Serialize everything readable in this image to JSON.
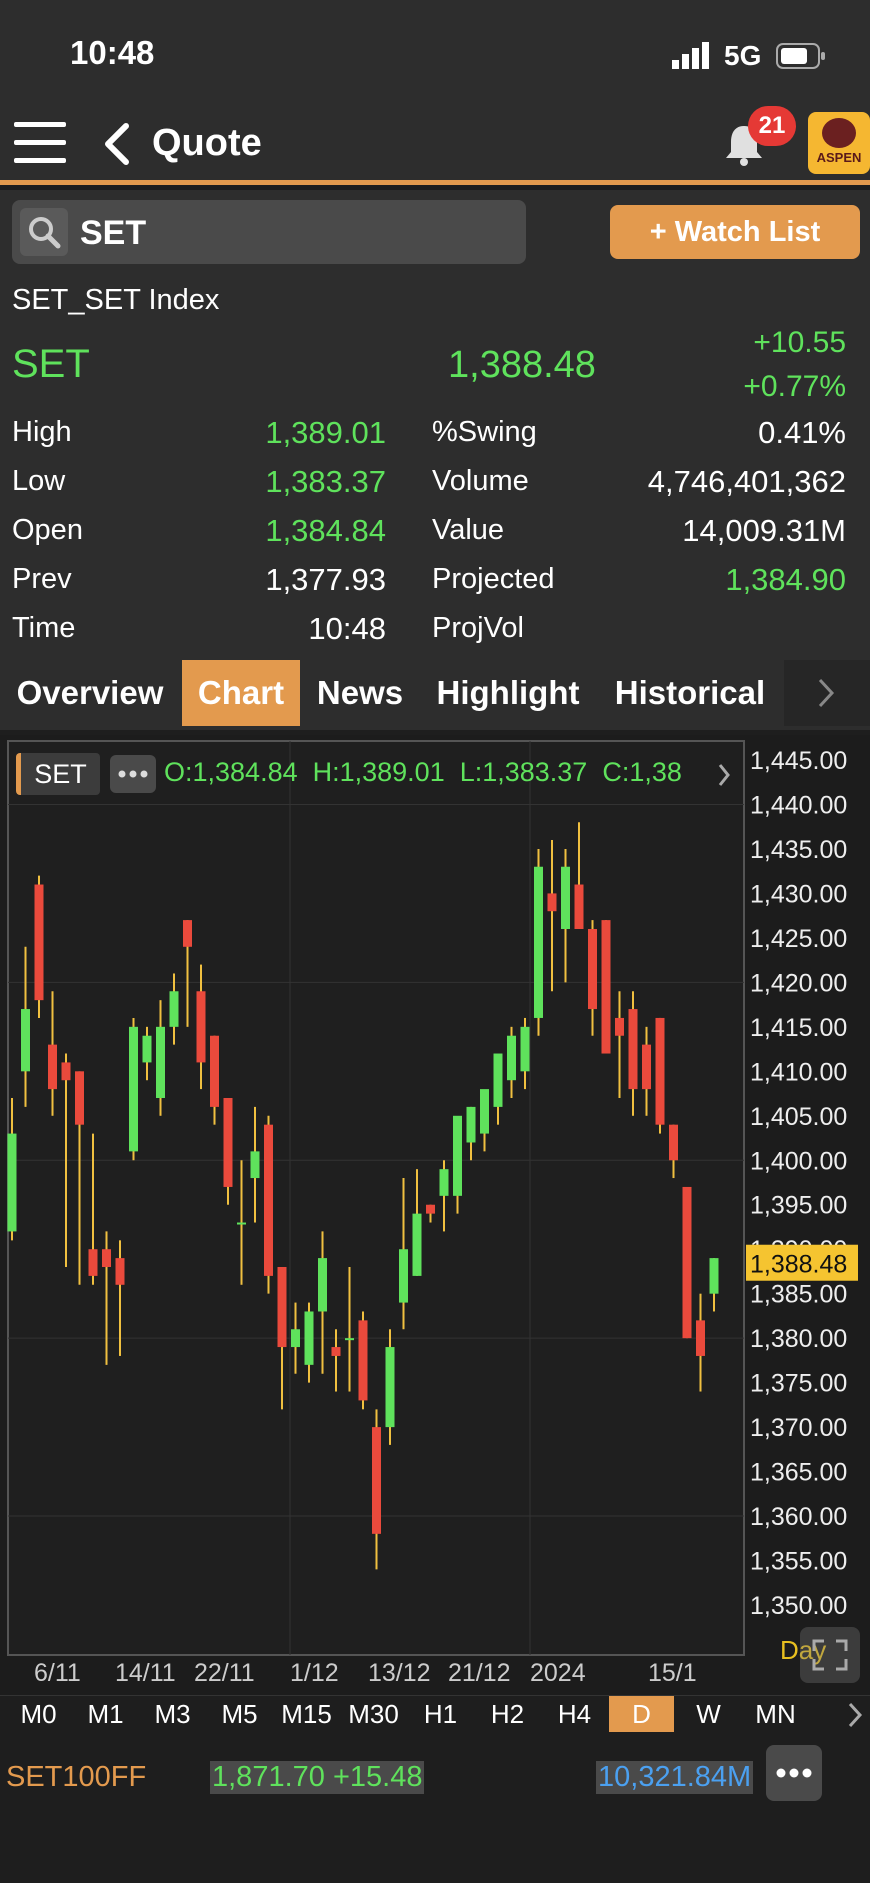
{
  "status": {
    "time": "10:48",
    "network": "5G"
  },
  "nav": {
    "title": "Quote",
    "badge": "21",
    "logo": "ASPEN"
  },
  "search": {
    "value": "SET",
    "watch_label": "+ Watch List"
  },
  "quote": {
    "full_name": "SET_SET Index",
    "symbol": "SET",
    "last": "1,388.48",
    "change": "+10.55",
    "change_pct": "+0.77%",
    "left_rows": [
      {
        "label": "High",
        "value": "1,389.01",
        "color": "#5fe25c"
      },
      {
        "label": "Low",
        "value": "1,383.37",
        "color": "#5fe25c"
      },
      {
        "label": "Open",
        "value": "1,384.84",
        "color": "#5fe25c"
      },
      {
        "label": "Prev",
        "value": "1,377.93",
        "color": "#ffffff"
      },
      {
        "label": "Time",
        "value": "10:48",
        "color": "#ffffff"
      }
    ],
    "right_rows": [
      {
        "label": "%Swing",
        "value": "0.41%",
        "color": "#ffffff"
      },
      {
        "label": "Volume",
        "value": "4,746,401,362",
        "color": "#ffffff"
      },
      {
        "label": "Value",
        "value": "14,009.31M",
        "color": "#ffffff"
      },
      {
        "label": "Projected",
        "value": "1,384.90",
        "color": "#5fe25c"
      },
      {
        "label": "ProjVol",
        "value": "",
        "color": "#ffffff"
      }
    ]
  },
  "tabs": [
    "Overview",
    "Chart",
    "News",
    "Highlight",
    "Historical"
  ],
  "active_tab": "Chart",
  "chart_header": {
    "symbol": "SET",
    "ohlc": "O:1,384.84  H:1,389.01  L:1,383.37  C:1,38"
  },
  "chart_data": {
    "type": "candlestick",
    "ylim": [
      1345,
      1447
    ],
    "y_ticks": [
      "1,445.00",
      "1,440.00",
      "1,435.00",
      "1,430.00",
      "1,425.00",
      "1,420.00",
      "1,415.00",
      "1,410.00",
      "1,405.00",
      "1,400.00",
      "1,395.00",
      "1,390.00",
      "1,385.00",
      "1,380.00",
      "1,375.00",
      "1,370.00",
      "1,365.00",
      "1,360.00",
      "1,355.00",
      "1,350.00"
    ],
    "x_ticks": [
      "6/11",
      "14/11",
      "22/11",
      "1/12",
      "13/12",
      "21/12",
      "2024",
      "15/1"
    ],
    "last_price_label": "1,388.48",
    "last_price": 1388.48,
    "candles": [
      {
        "o": 1392,
        "h": 1407,
        "l": 1391,
        "c": 1403
      },
      {
        "o": 1410,
        "h": 1424,
        "l": 1406,
        "c": 1417
      },
      {
        "o": 1431,
        "h": 1432,
        "l": 1416,
        "c": 1418
      },
      {
        "o": 1413,
        "h": 1419,
        "l": 1405,
        "c": 1408
      },
      {
        "o": 1411,
        "h": 1412,
        "l": 1388,
        "c": 1409
      },
      {
        "o": 1410,
        "h": 1410,
        "l": 1386,
        "c": 1404
      },
      {
        "o": 1390,
        "h": 1403,
        "l": 1386,
        "c": 1387
      },
      {
        "o": 1390,
        "h": 1392,
        "l": 1377,
        "c": 1388
      },
      {
        "o": 1389,
        "h": 1391,
        "l": 1378,
        "c": 1386
      },
      {
        "o": 1401,
        "h": 1416,
        "l": 1400,
        "c": 1415
      },
      {
        "o": 1411,
        "h": 1415,
        "l": 1409,
        "c": 1414
      },
      {
        "o": 1407,
        "h": 1418,
        "l": 1405,
        "c": 1415
      },
      {
        "o": 1415,
        "h": 1421,
        "l": 1413,
        "c": 1419
      },
      {
        "o": 1427,
        "h": 1427,
        "l": 1415,
        "c": 1424
      },
      {
        "o": 1419,
        "h": 1422,
        "l": 1408,
        "c": 1411
      },
      {
        "o": 1414,
        "h": 1414,
        "l": 1404,
        "c": 1406
      },
      {
        "o": 1407,
        "h": 1407,
        "l": 1395,
        "c": 1397
      },
      {
        "o": 1393,
        "h": 1400,
        "l": 1386,
        "c": 1393
      },
      {
        "o": 1398,
        "h": 1406,
        "l": 1393,
        "c": 1401
      },
      {
        "o": 1404,
        "h": 1405,
        "l": 1385,
        "c": 1387
      },
      {
        "o": 1388,
        "h": 1388,
        "l": 1372,
        "c": 1379
      },
      {
        "o": 1379,
        "h": 1384,
        "l": 1376,
        "c": 1381
      },
      {
        "o": 1377,
        "h": 1384,
        "l": 1375,
        "c": 1383
      },
      {
        "o": 1383,
        "h": 1392,
        "l": 1376,
        "c": 1389
      },
      {
        "o": 1379,
        "h": 1381,
        "l": 1374,
        "c": 1378
      },
      {
        "o": 1380,
        "h": 1388,
        "l": 1374,
        "c": 1380
      },
      {
        "o": 1382,
        "h": 1383,
        "l": 1372,
        "c": 1373
      },
      {
        "o": 1370,
        "h": 1372,
        "l": 1354,
        "c": 1358
      },
      {
        "o": 1370,
        "h": 1381,
        "l": 1368,
        "c": 1379
      },
      {
        "o": 1384,
        "h": 1398,
        "l": 1381,
        "c": 1390
      },
      {
        "o": 1387,
        "h": 1399,
        "l": 1387,
        "c": 1394
      },
      {
        "o": 1395,
        "h": 1395,
        "l": 1393,
        "c": 1394
      },
      {
        "o": 1396,
        "h": 1400,
        "l": 1392,
        "c": 1399
      },
      {
        "o": 1396,
        "h": 1404,
        "l": 1394,
        "c": 1405
      },
      {
        "o": 1402,
        "h": 1406,
        "l": 1400,
        "c": 1406
      },
      {
        "o": 1403,
        "h": 1407,
        "l": 1401,
        "c": 1408
      },
      {
        "o": 1406,
        "h": 1411,
        "l": 1404,
        "c": 1412
      },
      {
        "o": 1409,
        "h": 1415,
        "l": 1407,
        "c": 1414
      },
      {
        "o": 1410,
        "h": 1416,
        "l": 1408,
        "c": 1415
      },
      {
        "o": 1416,
        "h": 1435,
        "l": 1414,
        "c": 1433
      },
      {
        "o": 1430,
        "h": 1436,
        "l": 1419,
        "c": 1428
      },
      {
        "o": 1426,
        "h": 1435,
        "l": 1420,
        "c": 1433
      },
      {
        "o": 1431,
        "h": 1438,
        "l": 1427,
        "c": 1426
      },
      {
        "o": 1426,
        "h": 1427,
        "l": 1414,
        "c": 1417
      },
      {
        "o": 1427,
        "h": 1427,
        "l": 1413,
        "c": 1412
      },
      {
        "o": 1416,
        "h": 1419,
        "l": 1407,
        "c": 1414
      },
      {
        "o": 1417,
        "h": 1419,
        "l": 1405,
        "c": 1408
      },
      {
        "o": 1413,
        "h": 1415,
        "l": 1405,
        "c": 1408
      },
      {
        "o": 1416,
        "h": 1416,
        "l": 1403,
        "c": 1404
      },
      {
        "o": 1404,
        "h": 1404,
        "l": 1398,
        "c": 1400
      },
      {
        "o": 1397,
        "h": 1397,
        "l": 1380,
        "c": 1380
      },
      {
        "o": 1382,
        "h": 1385,
        "l": 1374,
        "c": 1378
      },
      {
        "o": 1385,
        "h": 1389,
        "l": 1383,
        "c": 1389
      }
    ]
  },
  "chart_footer": {
    "period": "Day"
  },
  "timeframes": [
    "M0",
    "M1",
    "M3",
    "M5",
    "M15",
    "M30",
    "H1",
    "H2",
    "H4",
    "D",
    "W",
    "MN"
  ],
  "active_timeframe": "D",
  "bottom": {
    "symbol": "SET100FF",
    "price_change": "1,871.70 +15.48",
    "value": "10,321.84M"
  },
  "colors": {
    "accent": "#e39a4e",
    "up": "#5fe25c",
    "down": "#ea4a3c",
    "wick": "#f0c040",
    "value_blue": "#4ba0f0"
  }
}
